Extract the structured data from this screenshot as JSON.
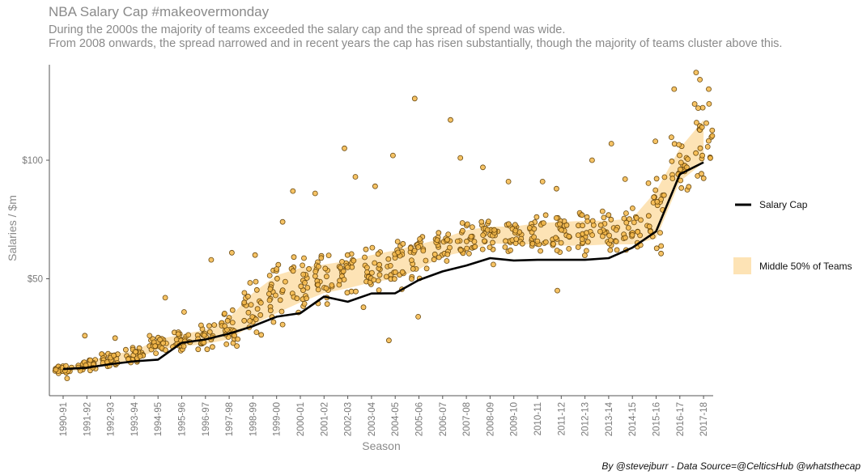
{
  "title": "NBA Salary Cap #makeovermonday",
  "subtitle_line1": "During the 2000s the majority of teams exceeded the salary cap and the spread of spend was wide.",
  "subtitle_line2": "From 2008 onwards, the spread narrowed and in recent years the cap has risen substantially, though the majority of teams cluster above this.",
  "caption": "By @stevejburr - Data Source=@CelticsHub @whatsthecap",
  "colors": {
    "point_fill": "#f5b94a",
    "point_stroke": "#6b4a10",
    "band_fill": "#fde3b5",
    "cap_line": "#000000",
    "axis": "#555555",
    "text_grey": "#8a8a8a"
  },
  "chart_data": {
    "type": "scatter",
    "xlabel": "Season",
    "ylabel": "Salaries / $m",
    "ylim": [
      0,
      137
    ],
    "y_ticks": [
      {
        "value": 50,
        "label": "$50"
      },
      {
        "value": 100,
        "label": "$100"
      }
    ],
    "categories": [
      "1990-91",
      "1991-92",
      "1992-93",
      "1993-94",
      "1994-95",
      "1995-96",
      "1996-97",
      "1997-98",
      "1998-99",
      "1999-00",
      "2000-01",
      "2001-02",
      "2002-03",
      "2003-04",
      "2004-05",
      "2005-06",
      "2006-07",
      "2007-08",
      "2008-09",
      "2009-10",
      "2010-11",
      "2011-12",
      "2012-13",
      "2013-14",
      "2014-15",
      "2015-16",
      "2016-17",
      "2017-18"
    ],
    "grid": false,
    "legend_position": "right",
    "series": [
      {
        "name": "Salary Cap",
        "kind": "line",
        "values": [
          11.9,
          12.5,
          14.0,
          15.2,
          15.9,
          23.0,
          24.4,
          26.9,
          30.0,
          34.0,
          35.5,
          42.5,
          40.3,
          43.8,
          43.9,
          49.5,
          53.1,
          55.6,
          58.7,
          57.7,
          58.0,
          58.0,
          58.0,
          58.7,
          63.1,
          70.0,
          94.1,
          99.1
        ]
      },
      {
        "name": "Middle 50% of Teams",
        "kind": "band",
        "lower": [
          10.8,
          11.8,
          14.2,
          15.8,
          20.2,
          21.5,
          22.5,
          24.5,
          30.5,
          35.5,
          40.0,
          44.0,
          46.0,
          48.5,
          50.0,
          54.0,
          59.5,
          61.5,
          65.0,
          64.5,
          64.5,
          64.0,
          64.0,
          64.5,
          64.5,
          67.0,
          91.0,
          99.0
        ],
        "upper": [
          12.7,
          14.8,
          18.0,
          19.6,
          24.5,
          26.5,
          28.5,
          33.5,
          44.0,
          51.5,
          54.5,
          56.0,
          57.5,
          60.0,
          62.0,
          64.5,
          67.0,
          70.5,
          72.0,
          72.0,
          73.5,
          74.0,
          74.5,
          74.5,
          75.5,
          87.0,
          105.0,
          117.0
        ]
      },
      {
        "name": "Teams",
        "kind": "points",
        "outliers": [
          [
            7,
            61
          ],
          [
            8,
            60
          ],
          [
            9,
            74
          ],
          [
            10,
            87
          ],
          [
            11,
            86
          ],
          [
            12,
            105
          ],
          [
            13,
            89
          ],
          [
            14,
            102
          ],
          [
            15,
            126
          ],
          [
            16,
            117
          ],
          [
            17,
            101
          ],
          [
            18,
            97
          ],
          [
            19,
            91
          ],
          [
            20,
            91
          ],
          [
            21,
            88
          ],
          [
            22,
            100
          ],
          [
            23,
            107
          ],
          [
            24,
            92
          ],
          [
            25,
            108
          ],
          [
            26,
            130
          ],
          [
            27,
            137
          ],
          [
            27,
            134
          ],
          [
            27,
            130
          ],
          [
            5,
            36
          ],
          [
            6,
            58
          ],
          [
            4,
            42
          ],
          [
            14,
            24
          ],
          [
            15,
            34
          ],
          [
            12,
            93
          ],
          [
            13,
            38
          ],
          [
            11,
            46
          ],
          [
            21,
            45
          ],
          [
            2,
            25
          ],
          [
            0,
            8
          ],
          [
            1,
            26
          ],
          [
            18,
            56
          ]
        ]
      }
    ]
  }
}
